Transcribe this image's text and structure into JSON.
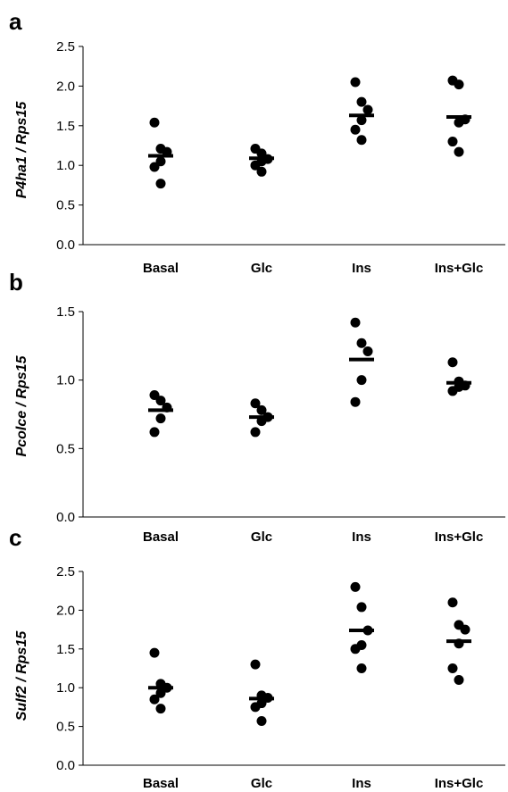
{
  "chart_data": [
    {
      "type": "scatter",
      "panel_label": "a",
      "ylabel": "P4ha1 / Rps15",
      "categories": [
        "Basal",
        "Glc",
        "Ins",
        "Ins+Glc"
      ],
      "ylim": [
        0,
        2.5
      ],
      "yticks": [
        "0.0",
        "0.5",
        "1.0",
        "1.5",
        "2.0",
        "2.5"
      ],
      "points": [
        [
          1.54,
          1.21,
          1.17,
          1.05,
          0.98,
          0.77
        ],
        [
          1.21,
          1.15,
          1.08,
          1.05,
          1.0,
          0.92
        ],
        [
          2.05,
          1.8,
          1.7,
          1.57,
          1.45,
          1.32
        ],
        [
          2.07,
          2.02,
          1.58,
          1.54,
          1.3,
          1.17
        ]
      ],
      "means": [
        1.12,
        1.09,
        1.63,
        1.61
      ],
      "grid": false,
      "legend": "none"
    },
    {
      "type": "scatter",
      "panel_label": "b",
      "ylabel": "Pcolce / Rps15",
      "categories": [
        "Basal",
        "Glc",
        "Ins",
        "Ins+Glc"
      ],
      "ylim": [
        0,
        1.5
      ],
      "yticks": [
        "0.0",
        "0.5",
        "1.0",
        "1.5"
      ],
      "points": [
        [
          0.89,
          0.85,
          0.8,
          0.72,
          0.62
        ],
        [
          0.83,
          0.78,
          0.73,
          0.7,
          0.62
        ],
        [
          1.42,
          1.27,
          1.21,
          1.0,
          0.84
        ],
        [
          1.13,
          0.99,
          0.96,
          0.95,
          0.92
        ]
      ],
      "means": [
        0.78,
        0.73,
        1.15,
        0.98
      ],
      "grid": false,
      "legend": "none"
    },
    {
      "type": "scatter",
      "panel_label": "c",
      "ylabel": "Sulf2 / Rps15",
      "categories": [
        "Basal",
        "Glc",
        "Ins",
        "Ins+Glc"
      ],
      "ylim": [
        0,
        2.5
      ],
      "yticks": [
        "0.0",
        "0.5",
        "1.0",
        "1.5",
        "2.0",
        "2.5"
      ],
      "points": [
        [
          1.45,
          1.05,
          1.0,
          0.93,
          0.85,
          0.73
        ],
        [
          1.3,
          0.9,
          0.87,
          0.8,
          0.75,
          0.57
        ],
        [
          2.3,
          2.04,
          1.74,
          1.55,
          1.5,
          1.25
        ],
        [
          2.1,
          1.81,
          1.75,
          1.57,
          1.25,
          1.1
        ]
      ],
      "means": [
        1.0,
        0.86,
        1.74,
        1.6
      ],
      "grid": false,
      "legend": "none"
    }
  ]
}
